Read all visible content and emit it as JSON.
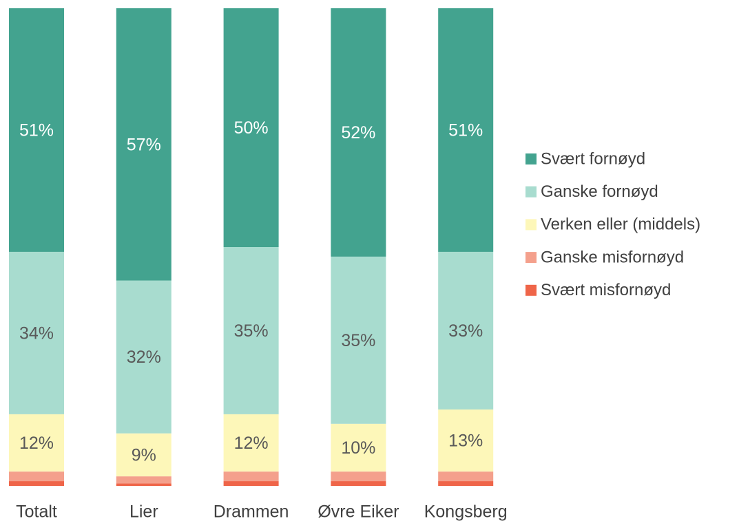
{
  "chart_data": {
    "type": "stacked_bar",
    "categories": [
      "Totalt",
      "Lier",
      "Drammen",
      "Øvre Eiker",
      "Kongsberg"
    ],
    "ylim": [
      0,
      100
    ],
    "legend": "right",
    "series": [
      {
        "name": "Svært misfornøyd",
        "color": "#ef6549",
        "values": [
          1,
          0.5,
          1,
          1,
          1
        ]
      },
      {
        "name": "Ganske misfornøyd",
        "color": "#f4a08c",
        "values": [
          2,
          1.5,
          2,
          2,
          2
        ]
      },
      {
        "name": "Verken eller (middels)",
        "color": "#fdf7b9",
        "values": [
          12,
          9,
          12,
          10,
          13
        ],
        "value_labels": [
          "12%",
          "9%",
          "12%",
          "10%",
          "13%"
        ],
        "label_color": "#595959"
      },
      {
        "name": "Ganske fornøyd",
        "color": "#a8dccf",
        "values": [
          34,
          32,
          35,
          35,
          33
        ],
        "value_labels": [
          "34%",
          "32%",
          "35%",
          "35%",
          "33%"
        ],
        "label_color": "#595959"
      },
      {
        "name": "Svært fornøyd",
        "color": "#43a38f",
        "values": [
          51,
          57,
          50,
          52,
          51
        ],
        "value_labels": [
          "51%",
          "57%",
          "50%",
          "52%",
          "51%"
        ],
        "label_color": "#ffffff"
      }
    ]
  }
}
